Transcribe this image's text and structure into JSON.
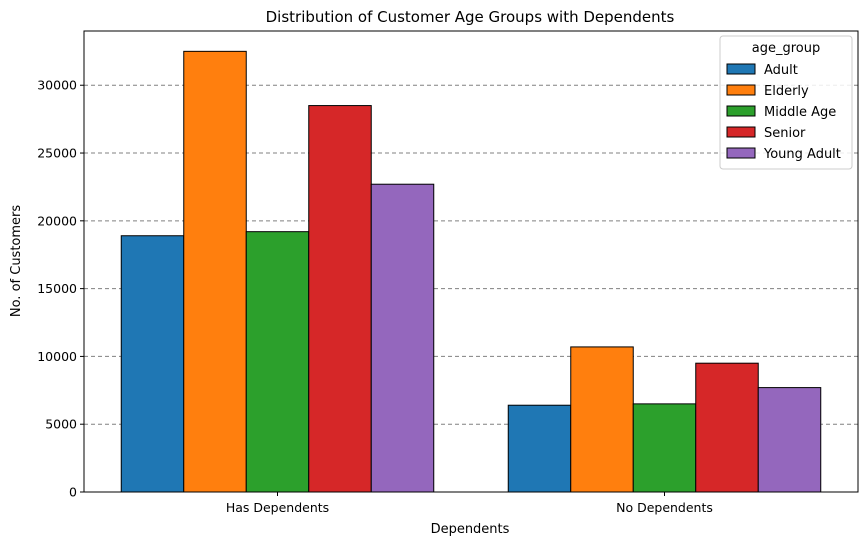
{
  "chart_data": {
    "type": "bar",
    "title": "Distribution of Customer Age Groups with Dependents",
    "xlabel": "Dependents",
    "ylabel": "No. of Customers",
    "categories": [
      "Has Dependents",
      "No Dependents"
    ],
    "ylim": [
      0,
      34000
    ],
    "yticks": [
      0,
      5000,
      10000,
      15000,
      20000,
      25000,
      30000
    ],
    "grid": "y-dashed",
    "legend": {
      "title": "age_group",
      "placement": "top-right"
    },
    "series": [
      {
        "name": "Adult",
        "color": "#1f77b4",
        "values": [
          18900,
          6400
        ]
      },
      {
        "name": "Elderly",
        "color": "#ff7f0e",
        "values": [
          32500,
          10700
        ]
      },
      {
        "name": "Middle Age",
        "color": "#2ca02c",
        "values": [
          19200,
          6500
        ]
      },
      {
        "name": "Senior",
        "color": "#d62728",
        "values": [
          28500,
          9500
        ]
      },
      {
        "name": "Young Adult",
        "color": "#9467bd",
        "values": [
          22700,
          7700
        ]
      }
    ]
  }
}
